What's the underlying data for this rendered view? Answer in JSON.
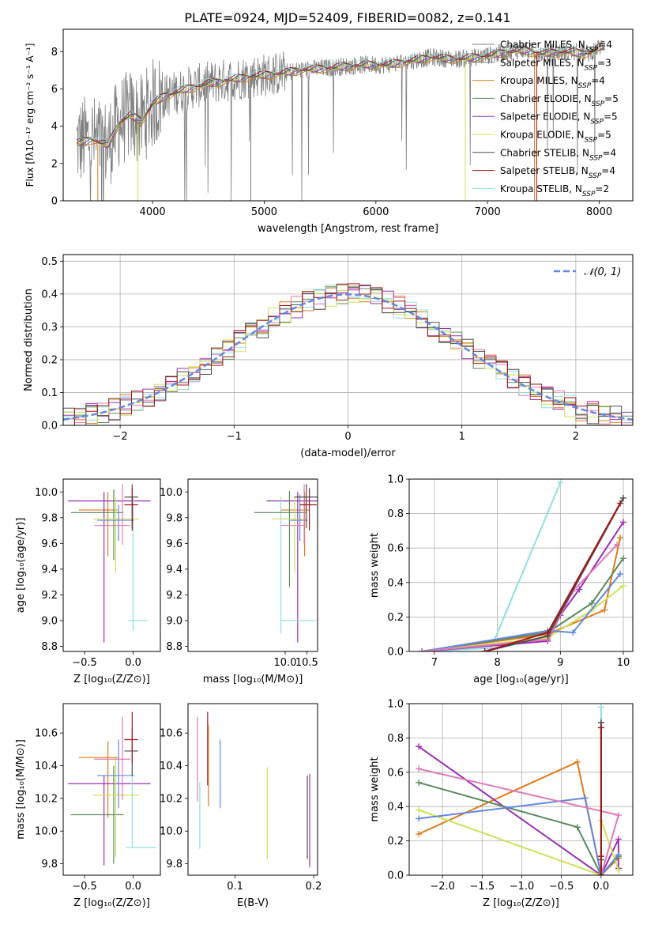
{
  "page_title": "PLATE=0924, MJD=52409, FIBERID=0082, z=0.141",
  "colors": {
    "gray": "#808080",
    "orange": "#e07b1a",
    "purple": "#9a30b4",
    "lime": "#cde25a",
    "dark": "#4d4d4d",
    "red": "#a01818",
    "cyan": "#8edfe3",
    "green": "#5a8a5e",
    "blue": "#6488e0",
    "pink": "#e07bb8"
  },
  "chart_data": [
    {
      "id": "spectrum",
      "type": "line",
      "xlabel": "wavelength [Angstrom, rest frame]",
      "ylabel": "Flux [fλ10⁻¹⁷ erg cm⁻² s⁻¹ A⁻¹]",
      "xlim": [
        3200,
        8300
      ],
      "ylim": [
        0,
        9.2
      ],
      "xticks": [
        4000,
        5000,
        6000,
        7000,
        8000
      ],
      "yticks": [
        0,
        2,
        4,
        6,
        8
      ],
      "legend_position": "top-right",
      "series": [
        {
          "name": "Chabrier MILES, N_SSP=4",
          "color": "#808080"
        },
        {
          "name": "Salpeter MILES, N_SSP=3",
          "color": "#808080"
        },
        {
          "name": "Kroupa MILES, N_SSP=4",
          "color": "#e07b1a"
        },
        {
          "name": "Chabrier ELODIE, N_SSP=5",
          "color": "#5a8a5e"
        },
        {
          "name": "Salpeter ELODIE, N_SSP=5",
          "color": "#9a30b4"
        },
        {
          "name": "Kroupa ELODIE, N_SSP=5",
          "color": "#cde25a"
        },
        {
          "name": "Chabrier STELIB, N_SSP=4",
          "color": "#4d4d4d"
        },
        {
          "name": "Salpeter STELIB, N_SSP=4",
          "color": "#a01818"
        },
        {
          "name": "Kroupa STELIB, N_SSP=2",
          "color": "#8edfe3"
        }
      ],
      "model_curve": {
        "x": [
          3320,
          3450,
          3600,
          3700,
          3800,
          3900,
          4000,
          4100,
          4300,
          4500,
          4700,
          4900,
          5100,
          5300,
          5500,
          5700,
          5900,
          6100,
          6300,
          6500,
          6700,
          6900,
          7100,
          7300,
          7500,
          7700,
          7900,
          8050
        ],
        "y": [
          3.1,
          3.3,
          3.0,
          4.2,
          4.6,
          4.3,
          5.2,
          5.6,
          6.0,
          6.3,
          6.5,
          6.7,
          6.8,
          7.0,
          7.1,
          7.2,
          7.3,
          7.3,
          7.5,
          7.7,
          7.6,
          7.7,
          7.9,
          8.1,
          7.9,
          8.0,
          7.9,
          8.4
        ]
      }
    },
    {
      "id": "residuals",
      "type": "histogram",
      "xlabel": "(data-model)/error",
      "ylabel": "Normed distribution",
      "xlim": [
        -2.5,
        2.5
      ],
      "ylim": [
        0,
        0.52
      ],
      "xticks": [
        -2,
        -1,
        0,
        1,
        2
      ],
      "yticks": [
        0.0,
        0.1,
        0.2,
        0.3,
        0.4,
        0.5
      ],
      "grid": true,
      "legend_position": "top-right",
      "legend": "𝒩(0, 1)",
      "reference_curve": "normal(0,1)",
      "bin_width": 0.1
    },
    {
      "id": "age-vs-Z",
      "type": "errorbar",
      "xlabel": "Z [log₁₀(Z/Z⊙)]",
      "ylabel": "age  [log₁₀(age/yr)]",
      "xlim": [
        -0.72,
        0.28
      ],
      "ylim": [
        8.76,
        10.1
      ],
      "xticks": [
        -0.5,
        0.0
      ],
      "yticks": [
        8.8,
        9.0,
        9.2,
        9.4,
        9.6,
        9.8,
        10.0
      ],
      "points": [
        {
          "c": "#e07b1a",
          "x": -0.26,
          "xe": [
            0.3,
            0.1
          ],
          "y": 9.86,
          "ye": [
            0.36,
            0.14
          ]
        },
        {
          "c": "#9a30b4",
          "x": -0.3,
          "xe": [
            0.37,
            0.48
          ],
          "y": 9.93,
          "ye": [
            1.1,
            0.07
          ]
        },
        {
          "c": "#8edfe3",
          "x": 0.0,
          "xe": [
            0.05,
            0.15
          ],
          "y": 9.0,
          "ye": [
            0.08,
            0.96
          ]
        },
        {
          "c": "#5a8a5e",
          "x": -0.2,
          "xe": [
            0.44,
            0.1
          ],
          "y": 9.84,
          "ye": [
            0.37,
            0.18
          ]
        },
        {
          "c": "#cde25a",
          "x": -0.18,
          "xe": [
            0.23,
            0.24
          ],
          "y": 9.79,
          "ye": [
            0.42,
            0.17
          ]
        },
        {
          "c": "#6488e0",
          "x": -0.15,
          "xe": [
            0.22,
            0.16
          ],
          "y": 9.78,
          "ye": [
            0.16,
            0.12
          ]
        },
        {
          "c": "#e07bb8",
          "x": -0.11,
          "xe": [
            0.29,
            0.08
          ],
          "y": 9.74,
          "ye": [
            0.15,
            0.32
          ]
        },
        {
          "c": "#4d4d4d",
          "x": -0.01,
          "xe": [
            0.08,
            0.06
          ],
          "y": 9.96,
          "ye": [
            0.24,
            0.1
          ]
        },
        {
          "c": "#a01818",
          "x": -0.01,
          "xe": [
            0.08,
            0.06
          ],
          "y": 9.9,
          "ye": [
            0.2,
            0.13
          ]
        }
      ]
    },
    {
      "id": "age-vs-mass",
      "type": "errorbar",
      "xlabel": "mass [log₁₀(M/M⊙)]",
      "ylabel": "",
      "xlim": [
        7.75,
        10.75
      ],
      "ylim": [
        8.76,
        10.1
      ],
      "xticks": [
        10.0,
        10.5
      ],
      "yticks": [
        8.8,
        9.0,
        9.2,
        9.4,
        9.6,
        9.8,
        10.0
      ],
      "points": [
        {
          "c": "#e07b1a",
          "x": 10.45,
          "xe": [
            0.55,
            0.12
          ],
          "y": 9.86,
          "ye": [
            0.36,
            0.14
          ]
        },
        {
          "c": "#9a30b4",
          "x": 10.29,
          "xe": [
            0.72,
            0.72
          ],
          "y": 9.93,
          "ye": [
            1.1,
            0.07
          ]
        },
        {
          "c": "#8edfe3",
          "x": 9.9,
          "xe": [
            0.0,
            0.82
          ],
          "y": 9.0,
          "ye": [
            0.1,
            0.96
          ]
        },
        {
          "c": "#5a8a5e",
          "x": 10.1,
          "xe": [
            0.82,
            0.38
          ],
          "y": 9.84,
          "ye": [
            0.58,
            0.17
          ]
        },
        {
          "c": "#cde25a",
          "x": 10.22,
          "xe": [
            0.52,
            0.28
          ],
          "y": 9.79,
          "ye": [
            0.42,
            0.17
          ]
        },
        {
          "c": "#6488e0",
          "x": 10.34,
          "xe": [
            0.22,
            0.18
          ],
          "y": 9.78,
          "ye": [
            0.16,
            0.2
          ]
        },
        {
          "c": "#e07bb8",
          "x": 10.44,
          "xe": [
            0.55,
            0.0
          ],
          "y": 9.74,
          "ye": [
            0.15,
            0.32
          ]
        },
        {
          "c": "#4d4d4d",
          "x": 10.49,
          "xe": [
            0.28,
            0.29
          ],
          "y": 9.96,
          "ye": [
            0.24,
            0.1
          ]
        },
        {
          "c": "#a01818",
          "x": 10.56,
          "xe": [
            0.22,
            0.17
          ],
          "y": 9.9,
          "ye": [
            0.2,
            0.13
          ]
        }
      ]
    },
    {
      "id": "weight-vs-age",
      "type": "line",
      "xlabel": "age  [log₁₀(age/yr)]",
      "ylabel": "mass weight",
      "xlim": [
        6.6,
        10.15
      ],
      "ylim": [
        0,
        1.0
      ],
      "xticks": [
        7,
        8,
        9,
        10
      ],
      "yticks": [
        0.0,
        0.2,
        0.4,
        0.6,
        0.8,
        1.0
      ],
      "grid": true,
      "series": [
        {
          "color": "#8edfe3",
          "x": [
            6.8,
            7.9,
            9.0
          ],
          "y": [
            0.0,
            0.02,
            0.98
          ]
        },
        {
          "color": "#e07b1a",
          "x": [
            6.8,
            8.8,
            9.7,
            9.95
          ],
          "y": [
            0.0,
            0.1,
            0.24,
            0.66
          ]
        },
        {
          "color": "#9a30b4",
          "x": [
            6.8,
            8.8,
            9.0,
            9.3,
            10.0
          ],
          "y": [
            0.0,
            0.06,
            0.21,
            0.36,
            0.75
          ]
        },
        {
          "color": "#5a8a5e",
          "x": [
            6.8,
            8.8,
            9.5,
            10.0
          ],
          "y": [
            0.0,
            0.11,
            0.28,
            0.54
          ]
        },
        {
          "color": "#cde25a",
          "x": [
            6.8,
            8.8,
            9.5,
            10.0
          ],
          "y": [
            0.0,
            0.08,
            0.24,
            0.38
          ]
        },
        {
          "color": "#6488e0",
          "x": [
            6.8,
            8.8,
            9.2,
            9.95
          ],
          "y": [
            0.0,
            0.12,
            0.11,
            0.45
          ]
        },
        {
          "color": "#e07bb8",
          "x": [
            6.8,
            8.8,
            9.2,
            9.9
          ],
          "y": [
            0.0,
            0.07,
            0.35,
            0.62
          ]
        },
        {
          "color": "#4d4d4d",
          "x": [
            7.8,
            8.8,
            10.0
          ],
          "y": [
            0.0,
            0.09,
            0.89
          ]
        },
        {
          "color": "#a01818",
          "x": [
            7.8,
            8.8,
            9.95
          ],
          "y": [
            0.0,
            0.11,
            0.86
          ]
        }
      ]
    },
    {
      "id": "mass-vs-Z",
      "type": "errorbar",
      "xlabel": "Z [log₁₀(Z/Z⊙)]",
      "ylabel": "mass [log₁₀(M/M⊙)]",
      "xlim": [
        -0.72,
        0.28
      ],
      "ylim": [
        9.73,
        10.78
      ],
      "xticks": [
        -0.5,
        0.0
      ],
      "yticks": [
        9.8,
        10.0,
        10.2,
        10.4,
        10.6
      ],
      "points": [
        {
          "c": "#e07b1a",
          "x": -0.26,
          "xe": [
            0.3,
            0.1
          ],
          "y": 10.45,
          "ye": [
            0.37,
            0.1
          ]
        },
        {
          "c": "#9a30b4",
          "x": -0.3,
          "xe": [
            0.37,
            0.48
          ],
          "y": 10.29,
          "ye": [
            0.5,
            0.05
          ]
        },
        {
          "c": "#8edfe3",
          "x": -0.01,
          "xe": [
            0.06,
            0.25
          ],
          "y": 9.9,
          "ye": [
            0.0,
            0.58
          ]
        },
        {
          "c": "#5a8a5e",
          "x": -0.2,
          "xe": [
            0.44,
            0.1
          ],
          "y": 10.1,
          "ye": [
            0.3,
            0.3
          ]
        },
        {
          "c": "#cde25a",
          "x": -0.18,
          "xe": [
            0.23,
            0.24
          ],
          "y": 10.22,
          "ye": [
            0.38,
            0.24
          ]
        },
        {
          "c": "#6488e0",
          "x": -0.15,
          "xe": [
            0.22,
            0.16
          ],
          "y": 10.34,
          "ye": [
            0.2,
            0.22
          ]
        },
        {
          "c": "#e07bb8",
          "x": -0.11,
          "xe": [
            0.29,
            0.08
          ],
          "y": 10.44,
          "ye": [
            0.25,
            0.26
          ]
        },
        {
          "c": "#4d4d4d",
          "x": -0.01,
          "xe": [
            0.08,
            0.06
          ],
          "y": 10.49,
          "ye": [
            0.15,
            0.14
          ]
        },
        {
          "c": "#a01818",
          "x": -0.01,
          "xe": [
            0.08,
            0.06
          ],
          "y": 10.56,
          "ye": [
            0.14,
            0.17
          ]
        }
      ]
    },
    {
      "id": "mass-vs-EBV",
      "type": "errorbar",
      "xlabel": "E(B-V)",
      "ylabel": "",
      "xlim": [
        0.04,
        0.205
      ],
      "ylim": [
        9.73,
        10.78
      ],
      "xticks": [
        0.1,
        0.2
      ],
      "yticks": [
        9.8,
        10.0,
        10.2,
        10.4,
        10.6
      ],
      "points": [
        {
          "c": "#e07bb8",
          "x": 0.052,
          "xe": [
            0,
            0
          ],
          "y": 10.44,
          "ye": [
            0.26,
            0.26
          ]
        },
        {
          "c": "#8edfe3",
          "x": 0.055,
          "xe": [
            0,
            0
          ],
          "y": 10.1,
          "ye": [
            0.21,
            0.2
          ]
        },
        {
          "c": "#a01818",
          "x": 0.065,
          "xe": [
            0,
            0
          ],
          "y": 10.56,
          "ye": [
            0.28,
            0.17
          ]
        },
        {
          "c": "#e07b1a",
          "x": 0.066,
          "xe": [
            0,
            0
          ],
          "y": 10.45,
          "ye": [
            0.3,
            0.2
          ]
        },
        {
          "c": "#6488e0",
          "x": 0.081,
          "xe": [
            0,
            0
          ],
          "y": 10.34,
          "ye": [
            0.2,
            0.22
          ]
        },
        {
          "c": "#cde25a",
          "x": 0.141,
          "xe": [
            0,
            0
          ],
          "y": 10.11,
          "ye": [
            0.28,
            0.28
          ]
        },
        {
          "c": "#4d4d4d",
          "x": 0.192,
          "xe": [
            0,
            0
          ],
          "y": 10.1,
          "ye": [
            0.27,
            0.24
          ]
        },
        {
          "c": "#9a30b4",
          "x": 0.195,
          "xe": [
            0,
            0
          ],
          "y": 10.29,
          "ye": [
            0.51,
            0.06
          ]
        }
      ]
    },
    {
      "id": "weight-vs-Z",
      "type": "line",
      "xlabel": "Z [log₁₀(Z/Z⊙)]",
      "ylabel": "mass weight",
      "xlim": [
        -2.42,
        0.4
      ],
      "ylim": [
        0,
        1.0
      ],
      "xticks": [
        -2.0,
        -1.5,
        -1.0,
        -0.5,
        0.0
      ],
      "yticks": [
        0.0,
        0.2,
        0.4,
        0.6,
        0.8,
        1.0
      ],
      "grid": true,
      "series": [
        {
          "color": "#8edfe3",
          "x": [
            0.0,
            0.0,
            0.0
          ],
          "y": [
            0.0,
            0.02,
            0.98
          ]
        },
        {
          "color": "#e07b1a",
          "x": [
            -2.3,
            -0.3,
            0.0,
            0.22
          ],
          "y": [
            0.24,
            0.66,
            0.0,
            0.1
          ]
        },
        {
          "color": "#9a30b4",
          "x": [
            -2.3,
            0.0,
            0.22,
            0.22
          ],
          "y": [
            0.75,
            0.0,
            0.21,
            0.04
          ]
        },
        {
          "color": "#5a8a5e",
          "x": [
            -2.3,
            -0.3,
            0.0,
            0.22
          ],
          "y": [
            0.54,
            0.28,
            0.0,
            0.11
          ]
        },
        {
          "color": "#cde25a",
          "x": [
            -2.3,
            0.0,
            0.0,
            0.22
          ],
          "y": [
            0.38,
            0.0,
            0.32,
            0.03
          ]
        },
        {
          "color": "#6488e0",
          "x": [
            -2.3,
            -0.2,
            0.0,
            0.22
          ],
          "y": [
            0.33,
            0.45,
            0.0,
            0.12
          ]
        },
        {
          "color": "#e07bb8",
          "x": [
            -2.3,
            0.22,
            0.0
          ],
          "y": [
            0.62,
            0.35,
            0.0
          ]
        },
        {
          "color": "#4d4d4d",
          "x": [
            0.0,
            0.0,
            0.0
          ],
          "y": [
            0.89,
            0.09,
            0.0
          ]
        },
        {
          "color": "#a01818",
          "x": [
            0.0,
            0.0,
            0.0
          ],
          "y": [
            0.86,
            0.11,
            0.0
          ]
        }
      ]
    }
  ]
}
